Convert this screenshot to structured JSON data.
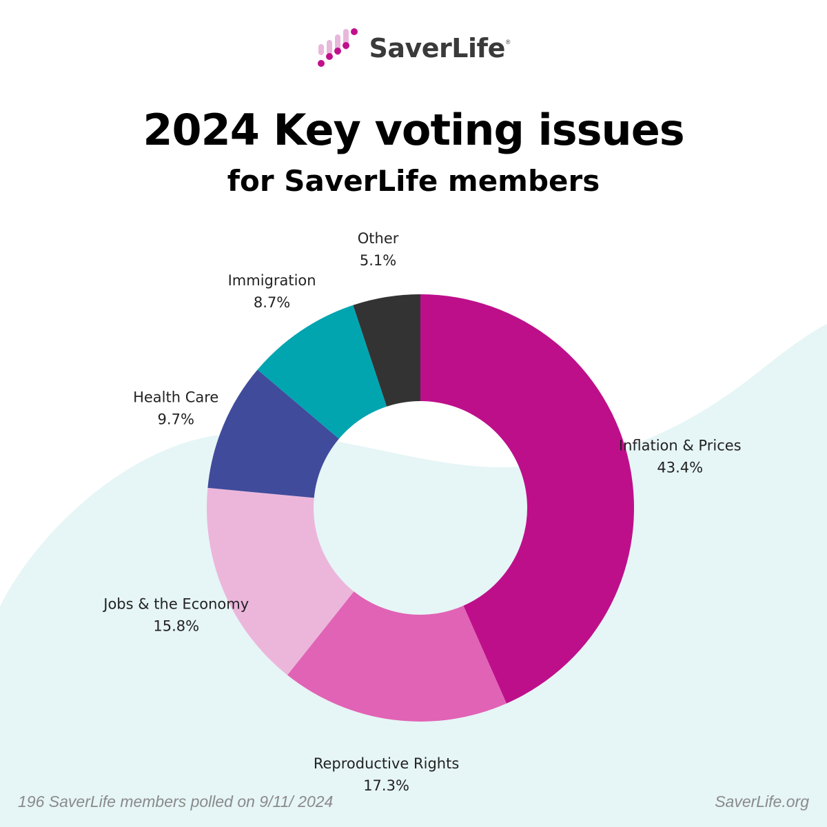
{
  "brand": {
    "name": "SaverLife",
    "reg_mark": "®"
  },
  "title": "2024 Key voting issues",
  "subtitle": "for SaverLife members",
  "footer": {
    "note": "196 SaverLife members polled on 9/11/ 2024",
    "site": "SaverLife.org"
  },
  "colors": {
    "background_wave": "#e6f5f6",
    "brand_magenta": "#c0108c",
    "brand_light": "#e8b7dc"
  },
  "chart_data": {
    "type": "pie",
    "donut": true,
    "unit": "%",
    "slices": [
      {
        "label": "Inflation & Prices",
        "value": 43.4,
        "value_label": "43.4%",
        "color": "#be0f8b"
      },
      {
        "label": "Reproductive Rights",
        "value": 17.3,
        "value_label": "17.3%",
        "color": "#e163b5"
      },
      {
        "label": "Jobs & the Economy",
        "value": 15.8,
        "value_label": "15.8%",
        "color": "#ecb6db"
      },
      {
        "label": "Health Care",
        "value": 9.7,
        "value_label": "9.7%",
        "color": "#404b9b"
      },
      {
        "label": "Immigration",
        "value": 8.7,
        "value_label": "8.7%",
        "color": "#00a5b0"
      },
      {
        "label": "Other",
        "value": 5.1,
        "value_label": "5.1%",
        "color": "#333333"
      }
    ]
  }
}
